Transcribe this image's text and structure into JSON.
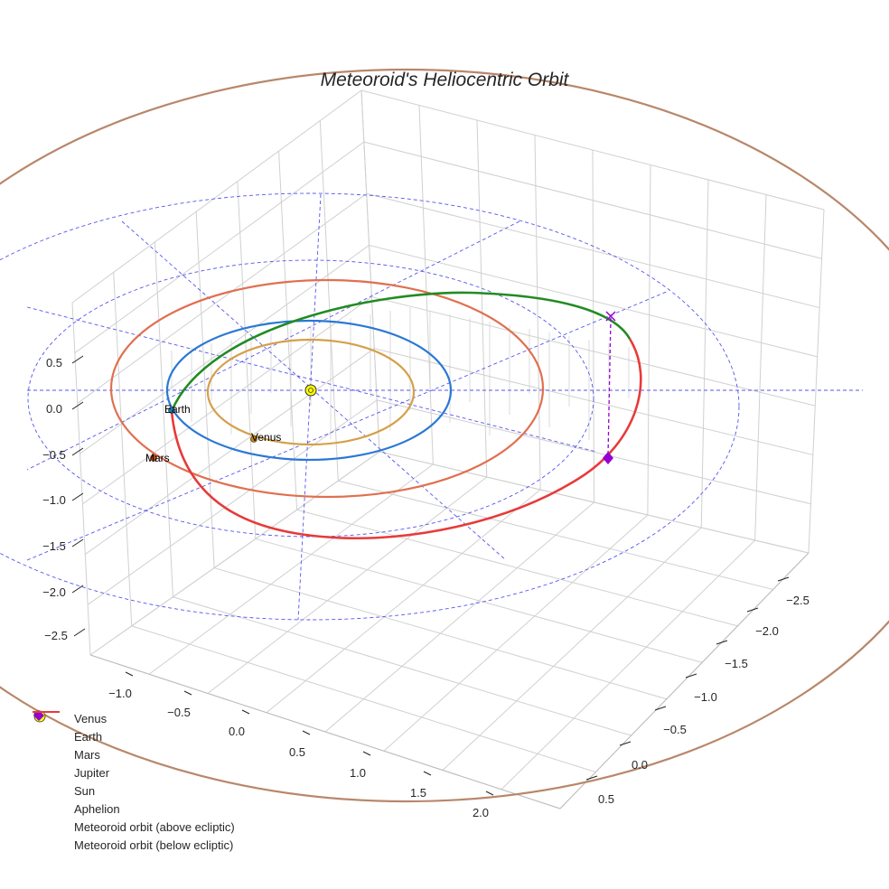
{
  "chart_data": {
    "type": "line3d",
    "title": "Meteoroid's Heliocentric Orbit",
    "x_ticks": [
      "−1.0",
      "−0.5",
      "0.0",
      "0.5",
      "1.0",
      "1.5",
      "2.0"
    ],
    "y_ticks": [
      "−2.5",
      "−2.0",
      "−1.5",
      "−1.0",
      "−0.5",
      "0.0",
      "0.5"
    ],
    "z_ticks": [
      "0.5",
      "0.0",
      "−0.5",
      "−1.0",
      "−1.5",
      "−2.0",
      "−2.5"
    ],
    "planets": [
      {
        "name": "Venus",
        "orbit_radius_au": 0.72,
        "color": "#d4a04a",
        "marker": "#c8860d"
      },
      {
        "name": "Earth",
        "orbit_radius_au": 1.0,
        "color": "#2a78d4",
        "marker": "#1f77b4"
      },
      {
        "name": "Mars",
        "orbit_radius_au": 1.52,
        "color": "#e07050",
        "marker": "#cc4411"
      },
      {
        "name": "Jupiter",
        "orbit_radius_au": 5.2,
        "color": "#b8876a",
        "marker": "#a0522d"
      }
    ],
    "point_labels": {
      "venus": "Venus",
      "earth": "Earth",
      "mars": "Mars"
    },
    "legend": [
      {
        "label": "Venus",
        "kind": "dot",
        "color": "#c8860d"
      },
      {
        "label": "Earth",
        "kind": "dot",
        "color": "#1f77b4"
      },
      {
        "label": "Mars",
        "kind": "dot",
        "color": "#cc4411"
      },
      {
        "label": "Jupiter",
        "kind": "dot",
        "color": "#a0522d"
      },
      {
        "label": "Sun",
        "kind": "sun",
        "color": "#ffff00"
      },
      {
        "label": "Aphelion",
        "kind": "diamond",
        "color": "#9400d3"
      },
      {
        "label": "Meteoroid orbit (above ecliptic)",
        "kind": "line",
        "color": "#228b22"
      },
      {
        "label": "Meteoroid orbit (below ecliptic)",
        "kind": "line",
        "color": "#e83a3a"
      }
    ],
    "legend_position": "bottom-left",
    "colors": {
      "above": "#228b22",
      "below": "#e83a3a",
      "ecliptic_grid": "#5555ee",
      "aphelion": "#9400d3",
      "grid": "#d0d0d0"
    }
  }
}
